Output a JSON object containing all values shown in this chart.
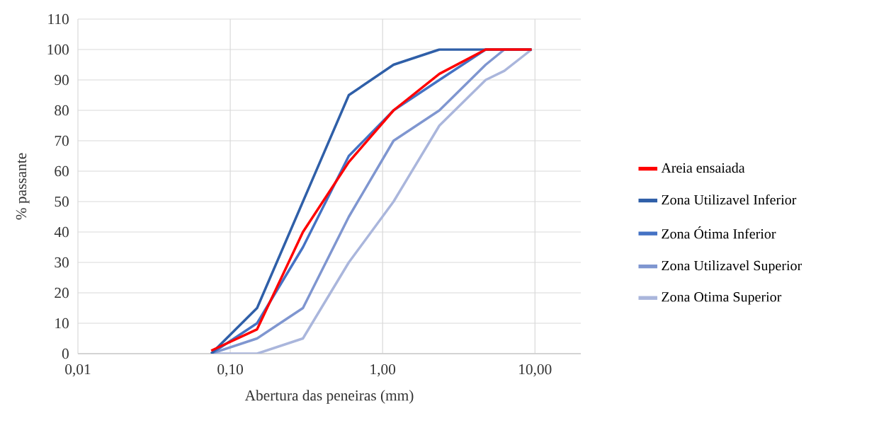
{
  "chart_data": {
    "type": "line",
    "xlabel": "Abertura das peneiras (mm)",
    "ylabel": "% passante",
    "x": [
      0.075,
      0.15,
      0.3,
      0.6,
      1.18,
      2.36,
      4.75,
      6.3,
      9.5
    ],
    "series": [
      {
        "name": "Areia ensaiada",
        "color": "#ff0000",
        "values": [
          1,
          8,
          40,
          63,
          80,
          92,
          100,
          100,
          100
        ]
      },
      {
        "name": "Zona Utilizavel Inferior",
        "color": "#2f5fa8",
        "values": [
          0,
          15,
          50,
          85,
          95,
          100,
          100,
          100,
          100
        ]
      },
      {
        "name": "Zona Ótima Inferior",
        "color": "#4472c4",
        "values": [
          0,
          10,
          35,
          65,
          80,
          90,
          100,
          100,
          100
        ]
      },
      {
        "name": "Zona Utilizavel Superior",
        "color": "#7f96d0",
        "values": [
          0,
          5,
          15,
          45,
          70,
          80,
          95,
          100,
          100
        ]
      },
      {
        "name": "Zona Otima Superior",
        "color": "#aab6dc",
        "values": [
          0,
          0,
          5,
          30,
          50,
          75,
          90,
          93,
          100
        ]
      }
    ],
    "log": "x",
    "xlim": [
      0.01,
      20
    ],
    "ylim": [
      0,
      110
    ],
    "xticks": [
      {
        "value": 0.01,
        "label": "0,01"
      },
      {
        "value": 0.1,
        "label": "0,10"
      },
      {
        "value": 1,
        "label": "1,00"
      },
      {
        "value": 10,
        "label": "10,00"
      }
    ],
    "yticks": [
      0,
      10,
      20,
      30,
      40,
      50,
      60,
      70,
      80,
      90,
      100,
      110
    ],
    "grid": true,
    "legend": "right",
    "marker": "none",
    "line_style": "solid"
  }
}
